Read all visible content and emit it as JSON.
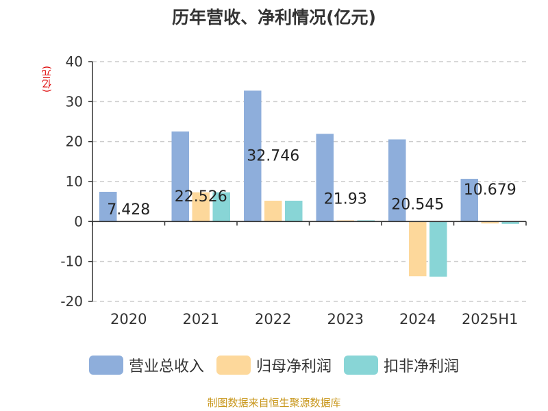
{
  "title": "历年营收、净利情况(亿元)",
  "unit": "(亿元)",
  "source": "制图数据来自恒生聚源数据库",
  "chart_data": {
    "type": "bar",
    "categories": [
      "2020",
      "2021",
      "2022",
      "2023",
      "2024",
      "2025H1"
    ],
    "series": [
      {
        "name": "营业总收入",
        "color": "#8eaedb",
        "values": [
          7.428,
          22.526,
          32.746,
          21.93,
          20.545,
          10.679
        ]
      },
      {
        "name": "归母净利润",
        "color": "#fdd89b",
        "values": [
          0.1,
          7.3,
          5.2,
          0.3,
          -13.7,
          -0.5
        ]
      },
      {
        "name": "扣非净利润",
        "color": "#88d5d6",
        "values": [
          0.1,
          7.3,
          5.2,
          0.3,
          -13.8,
          -0.6
        ]
      }
    ],
    "data_labels": [
      "7.428",
      "22.526",
      "32.746",
      "21.93",
      "20.545",
      "10.679"
    ],
    "yticks": [
      "40",
      "30",
      "20",
      "10",
      "0",
      "-10",
      "-20"
    ],
    "ylim": [
      -20,
      40
    ],
    "grid": true,
    "legend_position": "bottom"
  }
}
